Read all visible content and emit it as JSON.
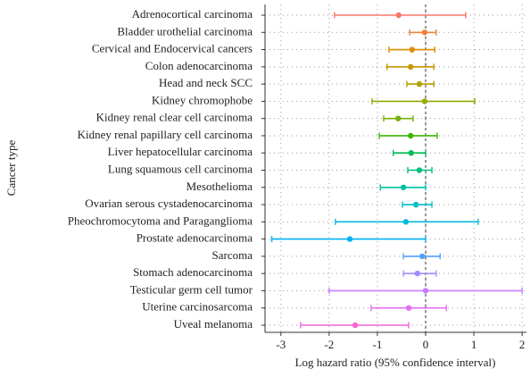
{
  "chart_data": {
    "type": "forest",
    "ylabel": "Cancer type",
    "xlabel": "Log hazard ratio (95% confidence interval)",
    "categories": [
      "Adrenocortical carcinoma",
      "Bladder urothelial carcinoma",
      "Cervical and Endocervical cancers",
      "Colon adenocarcinoma",
      "Head and neck SCC",
      "Kidney chromophobe",
      "Kidney renal clear cell carcinoma",
      "Kidney renal papillary cell carcinoma",
      "Liver hepatocellular carcinoma",
      "Lung squamous cell carcinoma",
      "Mesothelioma",
      "Ovarian serous cystadenocarcinoma",
      "Pheochromocytoma and Paraganglioma",
      "Prostate adenocarcinoma",
      "Sarcoma",
      "Stomach adenocarcinoma",
      "Testicular germ cell tumor",
      "Uterine carcinosarcoma",
      "Uveal melanoma"
    ],
    "values": [
      -0.56,
      -0.02,
      -0.28,
      -0.31,
      -0.13,
      -0.02,
      -0.57,
      -0.31,
      -0.3,
      -0.13,
      -0.46,
      -0.2,
      -0.41,
      -1.57,
      -0.07,
      -0.17,
      0.0,
      -0.35,
      -1.46
    ],
    "lower": [
      -1.89,
      -0.33,
      -0.76,
      -0.8,
      -0.39,
      -1.11,
      -0.87,
      -0.96,
      -0.67,
      -0.37,
      -0.94,
      -0.48,
      -1.87,
      -3.19,
      -0.46,
      -0.46,
      -2.0,
      -1.13,
      -2.59
    ],
    "upper": [
      0.83,
      0.22,
      0.19,
      0.17,
      0.17,
      1.02,
      -0.26,
      0.24,
      0.0,
      0.13,
      0.0,
      0.13,
      1.09,
      0.0,
      0.3,
      0.22,
      2.0,
      0.43,
      -0.35
    ],
    "colors": [
      "#F8766D",
      "#EC823C",
      "#DC8D00",
      "#C89800",
      "#B0A100",
      "#95A900",
      "#73B000",
      "#3DB600",
      "#00BA55",
      "#00BE7F",
      "#00C0A2",
      "#00BFC2",
      "#00BBDC",
      "#00B2F3",
      "#52A1FF",
      "#9A8EFF",
      "#C67CFF",
      "#E56DF1",
      "#F864D5"
    ],
    "xlim": [
      -3.33,
      2.09
    ],
    "xticks": [
      -3,
      -2,
      -1,
      0,
      1,
      2
    ],
    "refline": 0,
    "grid": true
  }
}
